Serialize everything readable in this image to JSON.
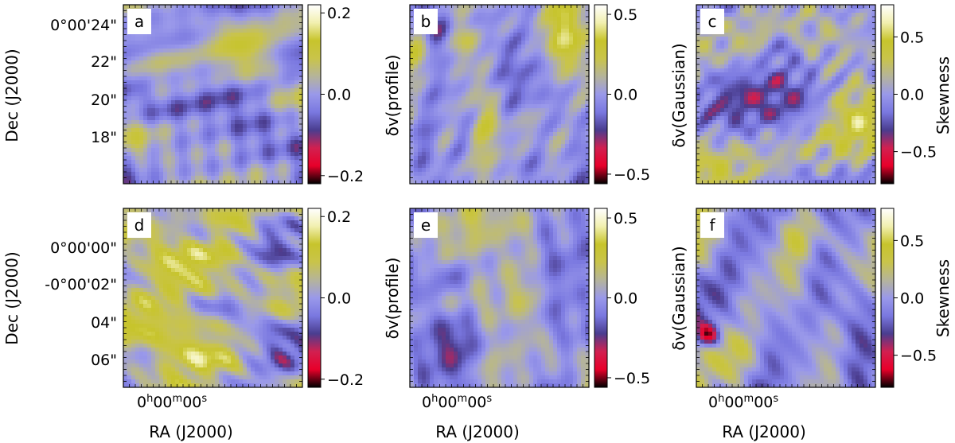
{
  "chart_data": {
    "type": "heatmap",
    "colormap": {
      "name": "diverging red-blue-olive",
      "stops": [
        "#000000",
        "#e8002a",
        "#d12050",
        "#4a3d8f",
        "#7a78e0",
        "#9a99ea",
        "#b5b49a",
        "#c9c44a",
        "#c7c42c",
        "#f2f0b0",
        "#ffffff"
      ]
    },
    "axes": {
      "x_label": "RA (J2000)",
      "y_label": "Dec (J2000)",
      "x_tick_label": "0h00m00s",
      "x_tick_parts": [
        "0",
        "h",
        "00",
        "m",
        "00",
        "s"
      ],
      "top_row_y_ticks": [
        "0°00'24\"",
        "22\"",
        "20\"",
        "18\""
      ],
      "bottom_row_y_ticks": [
        "0°00'00\"",
        "-0°00'02\"",
        "04\"",
        "06\""
      ]
    },
    "panels": [
      {
        "id": "a",
        "row": 0,
        "col": 0,
        "quantity": "δv(profile)",
        "colorbar_label_text": "",
        "clim": [
          -0.22,
          0.22
        ],
        "colorbar_ticks": [
          "0.2",
          "0.0",
          "−0.2"
        ],
        "colorbar_tick_values": [
          0.2,
          0.0,
          -0.2
        ],
        "colormap_asymmetry": "mostly positive with red clumps"
      },
      {
        "id": "b",
        "row": 0,
        "col": 1,
        "quantity": "δv(Gaussian)",
        "colorbar_label_text": "δv(profile)",
        "clim": [
          -0.56,
          0.56
        ],
        "colorbar_ticks": [
          "0.5",
          "0.0",
          "−0.5"
        ],
        "colorbar_tick_values": [
          0.5,
          0.0,
          -0.5
        ],
        "colormap_asymmetry": "saturated white streaks"
      },
      {
        "id": "c",
        "row": 0,
        "col": 2,
        "quantity": "Skewness",
        "colorbar_label_text": "δv(Gaussian)",
        "clim": [
          -0.78,
          0.78
        ],
        "colorbar_ticks": [
          "0.5",
          "0.0",
          "−0.5"
        ],
        "colorbar_tick_values": [
          0.5,
          0.0,
          -0.5
        ],
        "right_label": "Skewness",
        "colormap_asymmetry": "blocky red core"
      },
      {
        "id": "d",
        "row": 1,
        "col": 0,
        "quantity": "δv(profile)",
        "colorbar_label_text": "",
        "clim": [
          -0.22,
          0.22
        ],
        "colorbar_ticks": [
          "0.2",
          "0.0",
          "−0.2"
        ],
        "colorbar_tick_values": [
          0.2,
          0.0,
          -0.2
        ],
        "colormap_asymmetry": "mostly yellow"
      },
      {
        "id": "e",
        "row": 1,
        "col": 1,
        "quantity": "δv(Gaussian)",
        "colorbar_label_text": "δv(profile)",
        "clim": [
          -0.56,
          0.56
        ],
        "colorbar_ticks": [
          "0.5",
          "0.0",
          "−0.5"
        ],
        "colorbar_tick_values": [
          0.5,
          0.0,
          -0.5
        ],
        "colormap_asymmetry": "smooth yellow-blue"
      },
      {
        "id": "f",
        "row": 1,
        "col": 2,
        "quantity": "Skewness",
        "colorbar_label_text": "δv(Gaussian)",
        "clim": [
          -0.78,
          0.78
        ],
        "colorbar_ticks": [
          "0.5",
          "0.0",
          "−0.5"
        ],
        "colorbar_tick_values": [
          0.5,
          0.0,
          -0.5
        ],
        "right_label": "Skewness",
        "colormap_asymmetry": "blue with red corner"
      }
    ]
  }
}
